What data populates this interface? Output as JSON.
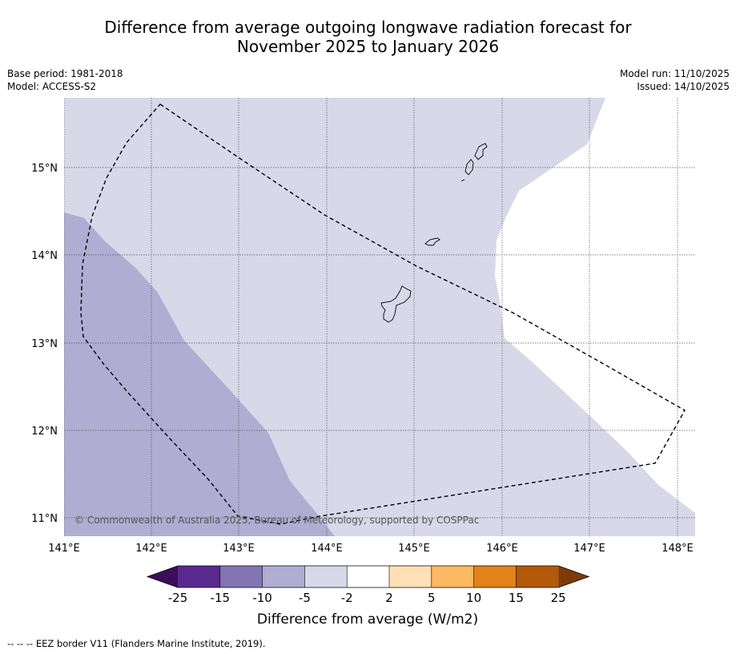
{
  "title": {
    "line1": "Difference from average outgoing longwave radiation forecast for",
    "line2": "November 2025 to January 2026"
  },
  "meta_left": {
    "base_period": "Base period: 1981-2018",
    "model": "Model: ACCESS-S2"
  },
  "meta_right": {
    "model_run": "Model run: 11/10/2025",
    "issued": "Issued: 14/10/2025"
  },
  "map": {
    "lat_labels": [
      "15°N",
      "14°N",
      "13°N",
      "12°N",
      "11°N"
    ],
    "lon_labels": [
      "141°E",
      "142°E",
      "143°E",
      "144°E",
      "145°E",
      "146°E",
      "147°E",
      "148°E"
    ],
    "copyright": "© Commonwealth of Australia 2025, Bureau of Meteorology, supported by COSPPac",
    "colors": {
      "band_minus10_to_minus5": "#b1acd2",
      "band_minus5_to_minus2": "#d8d8e9",
      "band_minus2_to_2": "#ffffff",
      "eez_border": "#000000"
    }
  },
  "colorbar": {
    "tick_labels": [
      "-25",
      "-15",
      "-10",
      "-5",
      "-2",
      "2",
      "5",
      "10",
      "15",
      "25"
    ],
    "colors": [
      "#3d0d5a",
      "#5b2a8f",
      "#8275b2",
      "#b1acd2",
      "#d8d8e9",
      "#ffffff",
      "#fde0b6",
      "#fbb962",
      "#e1831a",
      "#b35907",
      "#7f3a08"
    ],
    "label": "Difference from average (W/m2)"
  },
  "footer": {
    "legend_symbol": "-- -- --",
    "text": "EEZ border V11 (Flanders Marine Institute, 2019)."
  }
}
